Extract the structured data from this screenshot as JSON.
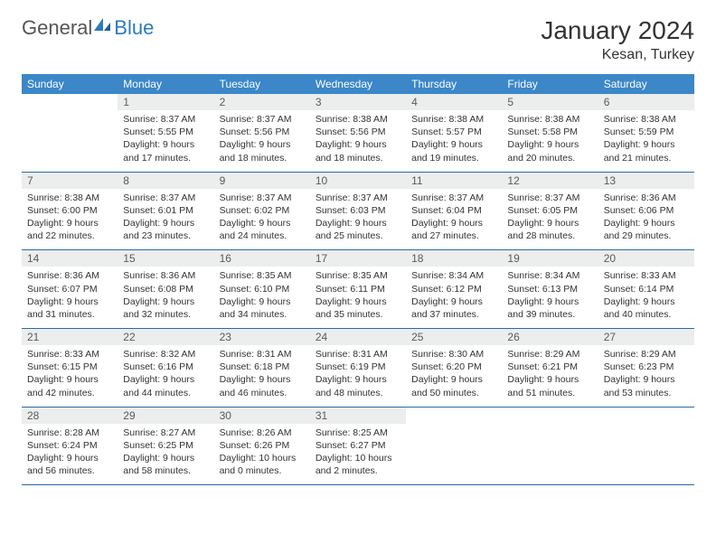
{
  "brand": {
    "part1": "General",
    "part2": "Blue"
  },
  "title": "January 2024",
  "location": "Kesan, Turkey",
  "colors": {
    "header_bg": "#3b87c8",
    "header_text": "#ffffff",
    "daynum_bg": "#eceded",
    "daynum_text": "#5a5a5a",
    "rule": "#2b6aa5",
    "body_text": "#333333",
    "brand_gray": "#555555",
    "brand_blue": "#2b7bbf"
  },
  "day_names": [
    "Sunday",
    "Monday",
    "Tuesday",
    "Wednesday",
    "Thursday",
    "Friday",
    "Saturday"
  ],
  "weeks": [
    [
      {
        "n": "",
        "lines": [
          "",
          "",
          "",
          ""
        ]
      },
      {
        "n": "1",
        "lines": [
          "Sunrise: 8:37 AM",
          "Sunset: 5:55 PM",
          "Daylight: 9 hours",
          "and 17 minutes."
        ]
      },
      {
        "n": "2",
        "lines": [
          "Sunrise: 8:37 AM",
          "Sunset: 5:56 PM",
          "Daylight: 9 hours",
          "and 18 minutes."
        ]
      },
      {
        "n": "3",
        "lines": [
          "Sunrise: 8:38 AM",
          "Sunset: 5:56 PM",
          "Daylight: 9 hours",
          "and 18 minutes."
        ]
      },
      {
        "n": "4",
        "lines": [
          "Sunrise: 8:38 AM",
          "Sunset: 5:57 PM",
          "Daylight: 9 hours",
          "and 19 minutes."
        ]
      },
      {
        "n": "5",
        "lines": [
          "Sunrise: 8:38 AM",
          "Sunset: 5:58 PM",
          "Daylight: 9 hours",
          "and 20 minutes."
        ]
      },
      {
        "n": "6",
        "lines": [
          "Sunrise: 8:38 AM",
          "Sunset: 5:59 PM",
          "Daylight: 9 hours",
          "and 21 minutes."
        ]
      }
    ],
    [
      {
        "n": "7",
        "lines": [
          "Sunrise: 8:38 AM",
          "Sunset: 6:00 PM",
          "Daylight: 9 hours",
          "and 22 minutes."
        ]
      },
      {
        "n": "8",
        "lines": [
          "Sunrise: 8:37 AM",
          "Sunset: 6:01 PM",
          "Daylight: 9 hours",
          "and 23 minutes."
        ]
      },
      {
        "n": "9",
        "lines": [
          "Sunrise: 8:37 AM",
          "Sunset: 6:02 PM",
          "Daylight: 9 hours",
          "and 24 minutes."
        ]
      },
      {
        "n": "10",
        "lines": [
          "Sunrise: 8:37 AM",
          "Sunset: 6:03 PM",
          "Daylight: 9 hours",
          "and 25 minutes."
        ]
      },
      {
        "n": "11",
        "lines": [
          "Sunrise: 8:37 AM",
          "Sunset: 6:04 PM",
          "Daylight: 9 hours",
          "and 27 minutes."
        ]
      },
      {
        "n": "12",
        "lines": [
          "Sunrise: 8:37 AM",
          "Sunset: 6:05 PM",
          "Daylight: 9 hours",
          "and 28 minutes."
        ]
      },
      {
        "n": "13",
        "lines": [
          "Sunrise: 8:36 AM",
          "Sunset: 6:06 PM",
          "Daylight: 9 hours",
          "and 29 minutes."
        ]
      }
    ],
    [
      {
        "n": "14",
        "lines": [
          "Sunrise: 8:36 AM",
          "Sunset: 6:07 PM",
          "Daylight: 9 hours",
          "and 31 minutes."
        ]
      },
      {
        "n": "15",
        "lines": [
          "Sunrise: 8:36 AM",
          "Sunset: 6:08 PM",
          "Daylight: 9 hours",
          "and 32 minutes."
        ]
      },
      {
        "n": "16",
        "lines": [
          "Sunrise: 8:35 AM",
          "Sunset: 6:10 PM",
          "Daylight: 9 hours",
          "and 34 minutes."
        ]
      },
      {
        "n": "17",
        "lines": [
          "Sunrise: 8:35 AM",
          "Sunset: 6:11 PM",
          "Daylight: 9 hours",
          "and 35 minutes."
        ]
      },
      {
        "n": "18",
        "lines": [
          "Sunrise: 8:34 AM",
          "Sunset: 6:12 PM",
          "Daylight: 9 hours",
          "and 37 minutes."
        ]
      },
      {
        "n": "19",
        "lines": [
          "Sunrise: 8:34 AM",
          "Sunset: 6:13 PM",
          "Daylight: 9 hours",
          "and 39 minutes."
        ]
      },
      {
        "n": "20",
        "lines": [
          "Sunrise: 8:33 AM",
          "Sunset: 6:14 PM",
          "Daylight: 9 hours",
          "and 40 minutes."
        ]
      }
    ],
    [
      {
        "n": "21",
        "lines": [
          "Sunrise: 8:33 AM",
          "Sunset: 6:15 PM",
          "Daylight: 9 hours",
          "and 42 minutes."
        ]
      },
      {
        "n": "22",
        "lines": [
          "Sunrise: 8:32 AM",
          "Sunset: 6:16 PM",
          "Daylight: 9 hours",
          "and 44 minutes."
        ]
      },
      {
        "n": "23",
        "lines": [
          "Sunrise: 8:31 AM",
          "Sunset: 6:18 PM",
          "Daylight: 9 hours",
          "and 46 minutes."
        ]
      },
      {
        "n": "24",
        "lines": [
          "Sunrise: 8:31 AM",
          "Sunset: 6:19 PM",
          "Daylight: 9 hours",
          "and 48 minutes."
        ]
      },
      {
        "n": "25",
        "lines": [
          "Sunrise: 8:30 AM",
          "Sunset: 6:20 PM",
          "Daylight: 9 hours",
          "and 50 minutes."
        ]
      },
      {
        "n": "26",
        "lines": [
          "Sunrise: 8:29 AM",
          "Sunset: 6:21 PM",
          "Daylight: 9 hours",
          "and 51 minutes."
        ]
      },
      {
        "n": "27",
        "lines": [
          "Sunrise: 8:29 AM",
          "Sunset: 6:23 PM",
          "Daylight: 9 hours",
          "and 53 minutes."
        ]
      }
    ],
    [
      {
        "n": "28",
        "lines": [
          "Sunrise: 8:28 AM",
          "Sunset: 6:24 PM",
          "Daylight: 9 hours",
          "and 56 minutes."
        ]
      },
      {
        "n": "29",
        "lines": [
          "Sunrise: 8:27 AM",
          "Sunset: 6:25 PM",
          "Daylight: 9 hours",
          "and 58 minutes."
        ]
      },
      {
        "n": "30",
        "lines": [
          "Sunrise: 8:26 AM",
          "Sunset: 6:26 PM",
          "Daylight: 10 hours",
          "and 0 minutes."
        ]
      },
      {
        "n": "31",
        "lines": [
          "Sunrise: 8:25 AM",
          "Sunset: 6:27 PM",
          "Daylight: 10 hours",
          "and 2 minutes."
        ]
      },
      {
        "n": "",
        "lines": [
          "",
          "",
          "",
          ""
        ]
      },
      {
        "n": "",
        "lines": [
          "",
          "",
          "",
          ""
        ]
      },
      {
        "n": "",
        "lines": [
          "",
          "",
          "",
          ""
        ]
      }
    ]
  ]
}
